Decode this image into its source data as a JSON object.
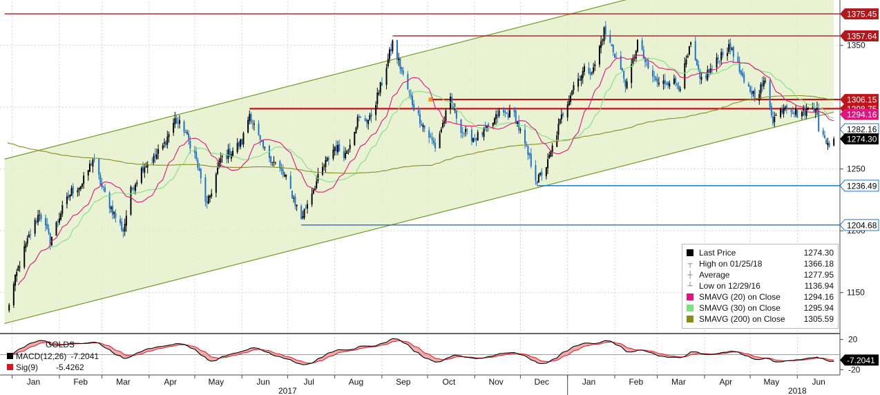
{
  "chart_data": [
    {
      "type": "candlestick",
      "title": "",
      "ylim": [
        1118,
        1385
      ],
      "y_ticks": [
        1150,
        1200,
        1250,
        1300,
        1350
      ],
      "x_tick_labels": [
        "Jan",
        "Feb",
        "Mar",
        "Apr",
        "May",
        "Jun",
        "Jul",
        "Aug",
        "Sep",
        "Oct",
        "Nov",
        "Dec",
        "Jan",
        "Feb",
        "Mar",
        "Apr",
        "May",
        "Jun"
      ],
      "year_labels": [
        "2017",
        "2018"
      ],
      "anchors": [
        [
          "2016-12-29",
          1137
        ],
        [
          "2017-01-05",
          1170
        ],
        [
          "2017-01-12",
          1195
        ],
        [
          "2017-01-19",
          1215
        ],
        [
          "2017-01-26",
          1192
        ],
        [
          "2017-02-02",
          1215
        ],
        [
          "2017-02-09",
          1232
        ],
        [
          "2017-02-16",
          1238
        ],
        [
          "2017-02-23",
          1258
        ],
        [
          "2017-03-01",
          1235
        ],
        [
          "2017-03-08",
          1216
        ],
        [
          "2017-03-15",
          1200
        ],
        [
          "2017-03-20",
          1232
        ],
        [
          "2017-03-28",
          1252
        ],
        [
          "2017-04-04",
          1258
        ],
        [
          "2017-04-11",
          1270
        ],
        [
          "2017-04-18",
          1290
        ],
        [
          "2017-04-24",
          1282
        ],
        [
          "2017-05-01",
          1262
        ],
        [
          "2017-05-09",
          1220
        ],
        [
          "2017-05-18",
          1258
        ],
        [
          "2017-05-25",
          1264
        ],
        [
          "2017-06-01",
          1272
        ],
        [
          "2017-06-06",
          1295
        ],
        [
          "2017-06-14",
          1268
        ],
        [
          "2017-06-22",
          1256
        ],
        [
          "2017-06-30",
          1242
        ],
        [
          "2017-07-10",
          1210
        ],
        [
          "2017-07-17",
          1232
        ],
        [
          "2017-07-24",
          1250
        ],
        [
          "2017-08-01",
          1268
        ],
        [
          "2017-08-08",
          1262
        ],
        [
          "2017-08-16",
          1290
        ],
        [
          "2017-08-24",
          1290
        ],
        [
          "2017-09-01",
          1320
        ],
        [
          "2017-09-08",
          1352
        ],
        [
          "2017-09-15",
          1325
        ],
        [
          "2017-09-22",
          1300
        ],
        [
          "2017-09-29",
          1283
        ],
        [
          "2017-10-06",
          1268
        ],
        [
          "2017-10-16",
          1305
        ],
        [
          "2017-10-24",
          1280
        ],
        [
          "2017-11-01",
          1275
        ],
        [
          "2017-11-10",
          1282
        ],
        [
          "2017-11-17",
          1295
        ],
        [
          "2017-11-27",
          1294
        ],
        [
          "2017-12-05",
          1265
        ],
        [
          "2017-12-12",
          1240
        ],
        [
          "2017-12-19",
          1255
        ],
        [
          "2017-12-28",
          1292
        ],
        [
          "2018-01-05",
          1318
        ],
        [
          "2018-01-12",
          1330
        ],
        [
          "2018-01-18",
          1330
        ],
        [
          "2018-01-25",
          1362
        ],
        [
          "2018-02-01",
          1343
        ],
        [
          "2018-02-09",
          1317
        ],
        [
          "2018-02-16",
          1353
        ],
        [
          "2018-02-23",
          1330
        ],
        [
          "2018-03-02",
          1318
        ],
        [
          "2018-03-09",
          1322
        ],
        [
          "2018-03-16",
          1318
        ],
        [
          "2018-03-23",
          1350
        ],
        [
          "2018-03-29",
          1322
        ],
        [
          "2018-04-06",
          1331
        ],
        [
          "2018-04-13",
          1345
        ],
        [
          "2018-04-19",
          1348
        ],
        [
          "2018-04-27",
          1318
        ],
        [
          "2018-05-04",
          1310
        ],
        [
          "2018-05-11",
          1320
        ],
        [
          "2018-05-16",
          1290
        ],
        [
          "2018-05-24",
          1302
        ],
        [
          "2018-06-01",
          1295
        ],
        [
          "2018-06-08",
          1298
        ],
        [
          "2018-06-14",
          1302
        ],
        [
          "2018-06-15",
          1279
        ],
        [
          "2018-06-22",
          1270
        ],
        [
          "2018-06-25",
          1274.3
        ]
      ],
      "channel": {
        "lower": [
          [
            "2016-12-27",
            1125
          ],
          [
            "2018-06-25",
            1296
          ]
        ],
        "upper": [
          [
            "2016-12-27",
            1258
          ],
          [
            "2018-06-25",
            1430
          ]
        ]
      },
      "horizontal_levels": [
        {
          "value": 1375.45,
          "label": "1375.45",
          "color": "#b0181c",
          "from": "2016-12-27"
        },
        {
          "value": 1357.64,
          "label": "1357.64",
          "color": "#b0181c",
          "from": "2017-09-08"
        },
        {
          "value": 1306.15,
          "label": "1306.15",
          "color": "#c0141a",
          "from": "2017-10-03",
          "bold": true
        },
        {
          "value": 1298.75,
          "label": "1298.75",
          "color": "#c0141a",
          "from": "2017-06-06",
          "bold": true
        },
        {
          "value": 1236.49,
          "label": "1236.49",
          "color": "#1e73c8",
          "from": "2017-12-12"
        },
        {
          "value": 1204.68,
          "label": "1204.68",
          "color": "#1e73c8",
          "from": "2017-07-10"
        }
      ],
      "price_tags": [
        {
          "value": 1294.16,
          "label": "1294.16",
          "color": "#e0147d"
        },
        {
          "value": 1282.16,
          "label": "1282.16",
          "color": "#ffffff",
          "text_color": "#000000"
        },
        {
          "value": 1274.3,
          "label": "1274.30",
          "color": "#000000"
        }
      ],
      "series_colors": {
        "sma20": "#e0147d",
        "sma30": "#7fe07f",
        "sma200": "#8a8a1f",
        "up": "#000000",
        "down": "#1e73c8"
      },
      "legend": {
        "last_price": {
          "label": "Last Price",
          "value": "1274.30"
        },
        "high": {
          "label": "High on 01/25/18",
          "value": "1366.18"
        },
        "average": {
          "label": "Average",
          "value": "1277.95"
        },
        "low": {
          "label": "Low on 12/29/16",
          "value": "1136.94"
        },
        "sma20": {
          "label": "SMAVG (20) on Close",
          "value": "1294.16"
        },
        "sma30": {
          "label": "SMAVG (30) on Close",
          "value": "1295.94"
        },
        "sma200": {
          "label": "SMAVG (200) on Close",
          "value": "1305.59"
        }
      }
    },
    {
      "type": "line",
      "panel": "macd",
      "ylim": [
        -27,
        27
      ],
      "y_ticks": [
        20,
        -20
      ],
      "labels": {
        "ticker": "GOLDS",
        "macd": "MACD(12,26)",
        "macd_value": "-7.2041",
        "sig": "Sig(9)",
        "sig_value": "-5.4262",
        "tag": "-7.2041"
      },
      "colors": {
        "macd": "#000000",
        "sig": "#e0141e",
        "fill": "#e89a9a"
      }
    }
  ]
}
